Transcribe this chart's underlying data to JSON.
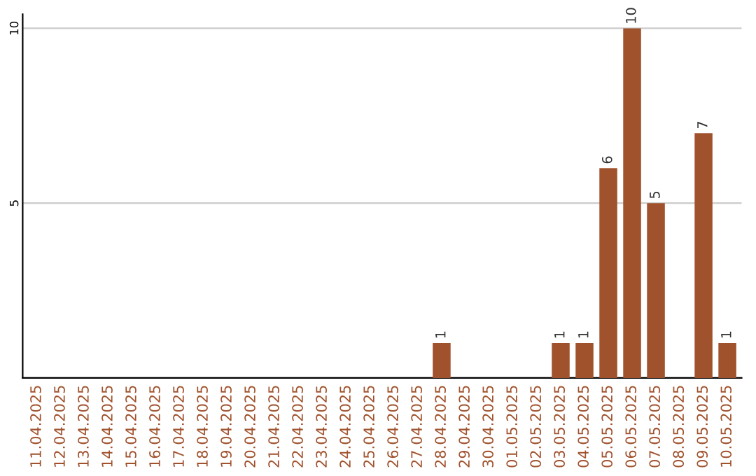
{
  "chart_data": {
    "type": "bar",
    "categories": [
      "11.04.2025",
      "12.04.2025",
      "13.04.2025",
      "14.04.2025",
      "15.04.2025",
      "16.04.2025",
      "17.04.2025",
      "18.04.2025",
      "19.04.2025",
      "20.04.2025",
      "21.04.2025",
      "22.04.2025",
      "23.04.2025",
      "24.04.2025",
      "25.04.2025",
      "26.04.2025",
      "27.04.2025",
      "28.04.2025",
      "29.04.2025",
      "30.04.2025",
      "01.05.2025",
      "02.05.2025",
      "03.05.2025",
      "04.05.2025",
      "05.05.2025",
      "06.05.2025",
      "07.05.2025",
      "08.05.2025",
      "09.05.2025",
      "10.05.2025"
    ],
    "values": [
      0,
      0,
      0,
      0,
      0,
      0,
      0,
      0,
      0,
      0,
      0,
      0,
      0,
      0,
      0,
      0,
      0,
      1,
      0,
      0,
      0,
      0,
      1,
      1,
      6,
      10,
      5,
      0,
      7,
      1
    ],
    "value_labels": [
      null,
      null,
      null,
      null,
      null,
      null,
      null,
      null,
      null,
      null,
      null,
      null,
      null,
      null,
      null,
      null,
      null,
      "1",
      null,
      null,
      null,
      null,
      "1",
      "1",
      "6",
      "10",
      "5",
      null,
      "7",
      "1"
    ],
    "color": "#a0522d",
    "ylim": [
      0,
      10.4
    ],
    "yticks": [
      5,
      10
    ],
    "grid": "y"
  }
}
